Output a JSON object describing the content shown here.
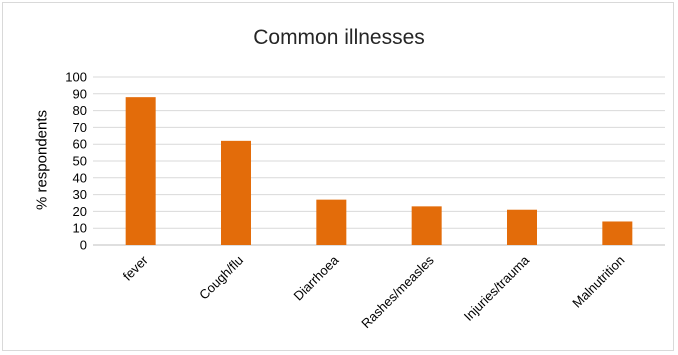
{
  "chart_data": {
    "type": "bar",
    "title": "Common illnesses",
    "xlabel": "",
    "ylabel": "% respondents",
    "categories": [
      "fever",
      "Cough/flu",
      "Diarrhoea",
      "Rashes/measles",
      "Injuries/trauma",
      "Malnutrition"
    ],
    "values": [
      88,
      62,
      27,
      23,
      21,
      14
    ],
    "ylim": [
      0,
      100
    ],
    "yticks": [
      0,
      10,
      20,
      30,
      40,
      50,
      60,
      70,
      80,
      90,
      100
    ],
    "grid": true,
    "legend": "none",
    "bar_color": "#e36c0a",
    "grid_color": "#d9d9d9"
  }
}
